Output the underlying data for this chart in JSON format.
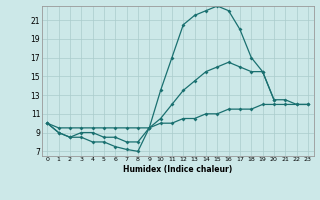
{
  "xlabel": "Humidex (Indice chaleur)",
  "bg_color": "#cce8e8",
  "grid_color": "#aacccc",
  "line_color": "#1a7070",
  "xlim": [
    -0.5,
    23.5
  ],
  "ylim": [
    6.5,
    22.5
  ],
  "xticks": [
    0,
    1,
    2,
    3,
    4,
    5,
    6,
    7,
    8,
    9,
    10,
    11,
    12,
    13,
    14,
    15,
    16,
    17,
    18,
    19,
    20,
    21,
    22,
    23
  ],
  "yticks": [
    7,
    9,
    11,
    13,
    15,
    17,
    19,
    21
  ],
  "line1_x": [
    0,
    1,
    2,
    3,
    4,
    5,
    6,
    7,
    8,
    9,
    10,
    11,
    12,
    13,
    14,
    15,
    16,
    17,
    18,
    19,
    20
  ],
  "line1_y": [
    10,
    9,
    8.5,
    8.5,
    8,
    8,
    7.5,
    7.2,
    7.0,
    9.5,
    13.5,
    17,
    20.5,
    21.5,
    22,
    22.5,
    22,
    20,
    17,
    15.5,
    12.5
  ],
  "line2_x": [
    0,
    1,
    2,
    3,
    4,
    5,
    6,
    7,
    8,
    9,
    10,
    11,
    12,
    13,
    14,
    15,
    16,
    17,
    18,
    19,
    20,
    21,
    22,
    23
  ],
  "line2_y": [
    10,
    9,
    8.5,
    9,
    9,
    8.5,
    8.5,
    8,
    8,
    9.5,
    10.5,
    12,
    13.5,
    14.5,
    15.5,
    16,
    16.5,
    16,
    15.5,
    15.5,
    12.5,
    12.5,
    12,
    12
  ],
  "line3_x": [
    0,
    1,
    2,
    3,
    4,
    5,
    6,
    7,
    8,
    9,
    10,
    11,
    12,
    13,
    14,
    15,
    16,
    17,
    18,
    19,
    20,
    21,
    22,
    23
  ],
  "line3_y": [
    10,
    9.5,
    9.5,
    9.5,
    9.5,
    9.5,
    9.5,
    9.5,
    9.5,
    9.5,
    10,
    10,
    10.5,
    10.5,
    11,
    11,
    11.5,
    11.5,
    11.5,
    12,
    12,
    12,
    12,
    12
  ]
}
